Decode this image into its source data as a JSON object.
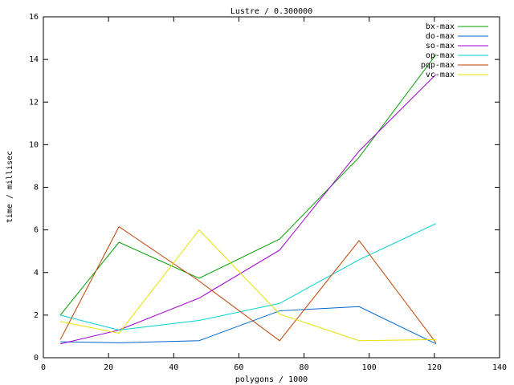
{
  "chart_data": {
    "type": "line",
    "title": "Lustre / 0.300000",
    "x_label": "polygons / 1000",
    "y_label": "time / millisec",
    "x": [
      5.2,
      23.2,
      47.8,
      72.5,
      96.9,
      120.5
    ],
    "series": [
      {
        "name": "bx-max",
        "color": "#00a000",
        "values": [
          2.0,
          5.42,
          3.73,
          5.57,
          9.41,
          14.23
        ]
      },
      {
        "name": "do-max",
        "color": "#0066cc",
        "values": [
          0.75,
          0.7,
          0.8,
          2.2,
          2.4,
          0.65
        ]
      },
      {
        "name": "so-max",
        "color": "#a000d0",
        "values": [
          0.65,
          1.3,
          2.8,
          5.05,
          9.7,
          13.3
        ]
      },
      {
        "name": "op-max",
        "color": "#00d0d0",
        "values": [
          2.0,
          1.3,
          1.75,
          2.55,
          4.6,
          6.3
        ]
      },
      {
        "name": "pqp-max",
        "color": "#c04000",
        "values": [
          0.85,
          6.15,
          3.6,
          0.8,
          5.5,
          0.7
        ]
      },
      {
        "name": "vc-max",
        "color": "#e8e000",
        "values": [
          1.7,
          1.15,
          6.0,
          2.05,
          0.8,
          0.85
        ]
      }
    ],
    "xlim": [
      0,
      140
    ],
    "xticks": [
      0,
      20,
      40,
      60,
      80,
      100,
      120,
      140
    ],
    "ylim": [
      0,
      16
    ],
    "yticks": [
      0,
      2,
      4,
      6,
      8,
      10,
      12,
      14,
      16
    ],
    "legend": "top-right"
  }
}
